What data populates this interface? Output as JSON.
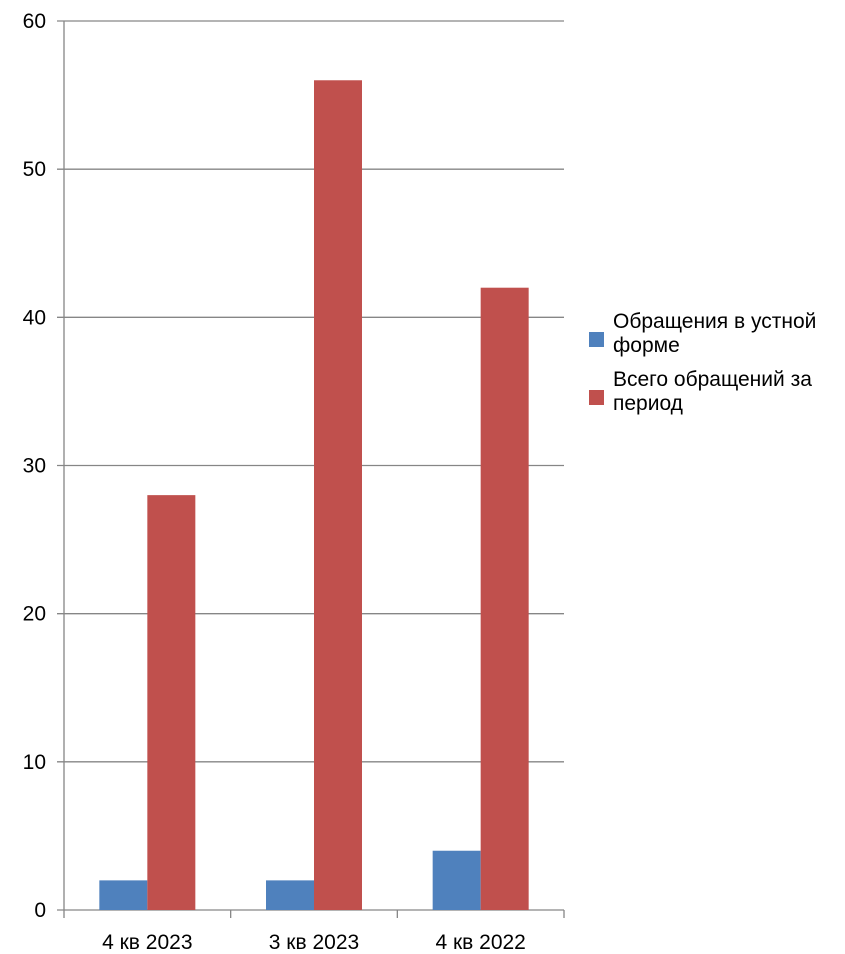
{
  "chart_data": {
    "type": "bar",
    "categories": [
      "4 кв 2023",
      "3 кв 2023",
      "4 кв 2022"
    ],
    "series": [
      {
        "name": "Обращения в устной форме",
        "legend_lines": [
          "Обращения в устной",
          "форме"
        ],
        "color": "#4F81BD",
        "values": [
          2,
          2,
          4
        ]
      },
      {
        "name": "Всего обращений за период",
        "legend_lines": [
          "Всего обращений за",
          "период"
        ],
        "color": "#C0504D",
        "values": [
          28,
          56,
          42
        ]
      }
    ],
    "title": "",
    "xlabel": "",
    "ylabel": "",
    "ylim": [
      0,
      60
    ],
    "yticks": [
      0,
      10,
      20,
      30,
      40,
      50,
      60
    ],
    "grid": true,
    "legend": "right",
    "axis_color": "#868686",
    "grid_color": "#868686"
  }
}
